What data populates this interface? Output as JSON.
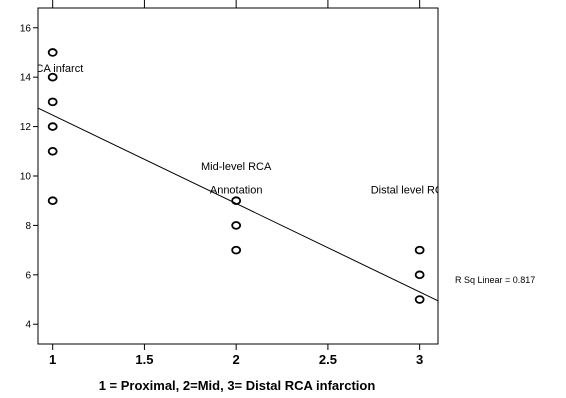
{
  "chart_data": {
    "type": "scatter",
    "title": "",
    "xlabel": "1 = Proximal, 2=Mid, 3= Distal RCA infarction",
    "ylabel": "",
    "xlim": [
      0.92,
      3.1
    ],
    "ylim": [
      3.2,
      16.8
    ],
    "x_ticks": [
      1,
      1.5,
      2,
      2.5,
      3
    ],
    "x_tick_labels": [
      "1",
      "1.5",
      "2",
      "2.5",
      "3"
    ],
    "y_ticks": [
      4,
      6,
      8,
      10,
      12,
      14,
      16
    ],
    "y_tick_labels": [
      "4",
      "6",
      "8",
      "10",
      "12",
      "14",
      "16"
    ],
    "points": [
      {
        "x": 1,
        "y": 15
      },
      {
        "x": 1,
        "y": 14
      },
      {
        "x": 1,
        "y": 13
      },
      {
        "x": 1,
        "y": 12
      },
      {
        "x": 1,
        "y": 11
      },
      {
        "x": 1,
        "y": 9
      },
      {
        "x": 2,
        "y": 9
      },
      {
        "x": 2,
        "y": 8
      },
      {
        "x": 2,
        "y": 7
      },
      {
        "x": 3,
        "y": 7
      },
      {
        "x": 3,
        "y": 6
      },
      {
        "x": 3,
        "y": 5
      }
    ],
    "fit_line": {
      "x": [
        0.92,
        3.1
      ],
      "y": [
        12.75,
        4.95
      ]
    },
    "annotations": [
      {
        "text": "al RCA infarct",
        "x": 0.97,
        "y": 14.2
      },
      {
        "text": "Mid-level RCA",
        "x": 2,
        "y": 10.25
      },
      {
        "text": "Annotation",
        "x": 2,
        "y": 9.3
      },
      {
        "text": "Distal level RCA",
        "x": 2.95,
        "y": 9.3
      }
    ],
    "r_squared_label": "R Sq Linear = 0.817",
    "grid": false
  }
}
